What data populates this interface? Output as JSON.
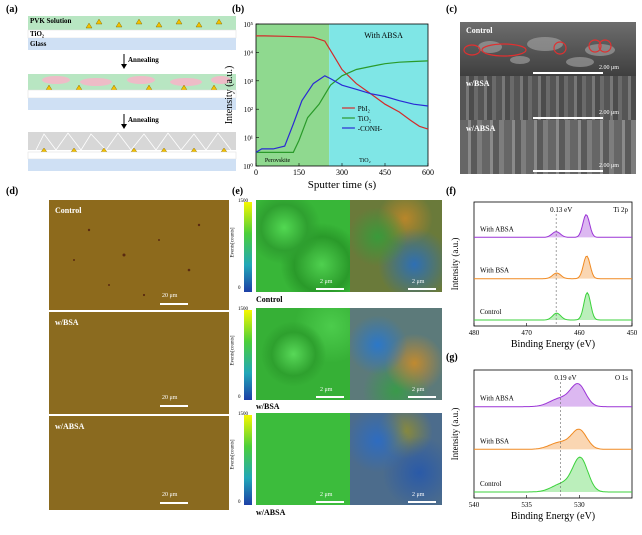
{
  "panels": {
    "a": {
      "label": "(a)",
      "layers": {
        "pvk": "PVK Solution",
        "tio2": "TiO₂",
        "glass": "Glass"
      },
      "step_label": "Annealing"
    },
    "b": {
      "label": "(b)",
      "legend_title": "With ABSA",
      "regions": {
        "left": "Perovskite",
        "right": "TiO₂"
      }
    },
    "c": {
      "label": "(c)",
      "rows": [
        {
          "name": "Control",
          "scale": "2.00 μm"
        },
        {
          "name": "w/BSA",
          "scale": "2.00 μm"
        },
        {
          "name": "w/ABSA",
          "scale": "2.00 μm"
        }
      ]
    },
    "d": {
      "label": "(d)",
      "rows": [
        {
          "name": "Control",
          "scale": "20 μm"
        },
        {
          "name": "w/BSA",
          "scale": "20 μm"
        },
        {
          "name": "w/ABSA",
          "scale": "20 μm"
        }
      ]
    },
    "e": {
      "label": "(e)",
      "colorbar_max": "1500",
      "colorbar_min": "0",
      "colorbar_title": "Events[counts]",
      "scale": "2 μm",
      "rows": [
        "Control",
        "w/BSA",
        "w/ABSA"
      ]
    },
    "f": {
      "label": "(f)",
      "element": "Ti 2p",
      "shift": "0.13 eV"
    },
    "g": {
      "label": "(g)",
      "element": "O 1s",
      "shift": "0.19 eV"
    }
  },
  "chart_data": [
    {
      "panel": "b",
      "type": "line",
      "xlabel": "Sputter time (s)",
      "ylabel": "Intensity (a.u.)",
      "xlim": [
        0,
        600
      ],
      "ylim_log10": [
        0,
        5
      ],
      "y_scale": "log",
      "xticks": [
        0,
        150,
        300,
        450,
        600
      ],
      "yticks": [
        "10⁰",
        "10¹",
        "10²",
        "10³",
        "10⁴",
        "10⁵"
      ],
      "shaded_regions": [
        {
          "name": "Perovskite",
          "x": [
            0,
            255
          ],
          "color": "#8fd98f"
        },
        {
          "name": "TiO₂",
          "x": [
            255,
            600
          ],
          "color": "#7fe6e6"
        }
      ],
      "series": [
        {
          "name": "PbI₂",
          "color": "#d42a2a",
          "x": [
            0,
            30,
            100,
            200,
            240,
            270,
            300,
            350,
            400,
            450,
            500,
            540,
            570,
            600
          ],
          "y": [
            38000.0,
            38000.0,
            37000.0,
            34000.0,
            25000.0,
            8000,
            2500,
            800,
            350,
            150,
            80,
            40,
            25,
            20
          ]
        },
        {
          "name": "TiO₂",
          "color": "#2a9a2a",
          "x": [
            0,
            100,
            130,
            150,
            180,
            220,
            260,
            300,
            350,
            400,
            450,
            500,
            550,
            600
          ],
          "y": [
            3,
            3,
            3,
            8,
            50,
            150,
            700,
            1500,
            2500,
            3200,
            4000,
            4500,
            4800,
            5000
          ]
        },
        {
          "name": "-CONH-",
          "color": "#2a2ad4",
          "x": [
            0,
            20,
            60,
            100,
            130,
            160,
            200,
            240,
            260,
            300,
            350,
            400,
            450,
            500,
            550,
            600
          ],
          "y": [
            3,
            4,
            4,
            5,
            30,
            200,
            800,
            1500,
            1200,
            700,
            500,
            350,
            280,
            200,
            150,
            130
          ]
        }
      ]
    },
    {
      "panel": "f",
      "type": "line",
      "xlabel": "Binding Energy (eV)",
      "ylabel": "Intensity (a.u.)",
      "xlim": [
        480,
        450
      ],
      "xticks": [
        480,
        470,
        460,
        450
      ],
      "series": [
        {
          "name": "With ABSA",
          "color": "#9b35d6",
          "peaks": [
            {
              "x": 464.4,
              "h": 0.25
            },
            {
              "x": 458.7,
              "h": 1.0
            }
          ]
        },
        {
          "name": "With BSA",
          "color": "#f08a22",
          "peaks": [
            {
              "x": 464.3,
              "h": 0.25
            },
            {
              "x": 458.6,
              "h": 1.0
            }
          ]
        },
        {
          "name": "Control",
          "color": "#3cd23c",
          "peaks": [
            {
              "x": 464.3,
              "h": 0.3
            },
            {
              "x": 458.5,
              "h": 1.2
            }
          ]
        }
      ]
    },
    {
      "panel": "g",
      "type": "line",
      "xlabel": "Binding Energy (eV)",
      "ylabel": "Intensity (a.u.)",
      "xlim": [
        540,
        525
      ],
      "xticks": [
        540,
        535,
        530
      ],
      "series": [
        {
          "name": "With ABSA",
          "color": "#9b35d6",
          "peaks": [
            {
              "x": 531.8,
              "h": 0.35
            },
            {
              "x": 530.1,
              "h": 0.9
            }
          ]
        },
        {
          "name": "With BSA",
          "color": "#f08a22",
          "peaks": [
            {
              "x": 531.8,
              "h": 0.3
            },
            {
              "x": 530.0,
              "h": 0.8
            }
          ]
        },
        {
          "name": "Control",
          "color": "#3cd23c",
          "peaks": [
            {
              "x": 531.6,
              "h": 0.35
            },
            {
              "x": 529.9,
              "h": 1.4
            }
          ]
        }
      ]
    }
  ]
}
